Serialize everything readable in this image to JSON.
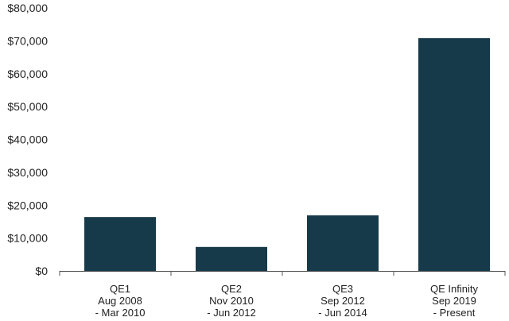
{
  "chart_data": {
    "type": "bar",
    "title": "",
    "xlabel": "",
    "ylabel": "",
    "ylim": [
      0,
      80000
    ],
    "y_ticks": [
      {
        "value": 0,
        "label": "$0"
      },
      {
        "value": 10000,
        "label": "$10,000"
      },
      {
        "value": 20000,
        "label": "$20,000"
      },
      {
        "value": 30000,
        "label": "$30,000"
      },
      {
        "value": 40000,
        "label": "$40,000"
      },
      {
        "value": 50000,
        "label": "$50,000"
      },
      {
        "value": 60000,
        "label": "$60,000"
      },
      {
        "value": 70000,
        "label": "$70,000"
      },
      {
        "value": 80000,
        "label": "$80,000"
      }
    ],
    "categories": [
      {
        "name": "QE1",
        "period_start": "Aug 2008",
        "period_end": "- Mar 2010"
      },
      {
        "name": "QE2",
        "period_start": "Nov 2010",
        "period_end": "- Jun 2012"
      },
      {
        "name": "QE3",
        "period_start": "Sep 2012",
        "period_end": "- Jun 2014"
      },
      {
        "name": "QE Infinity",
        "period_start": "Sep 2019",
        "period_end": "- Present"
      }
    ],
    "values": [
      16400,
      7300,
      16900,
      70800
    ],
    "bar_color": "#163a4a",
    "axis_color": "#555555",
    "grid": false,
    "legend": "none"
  }
}
